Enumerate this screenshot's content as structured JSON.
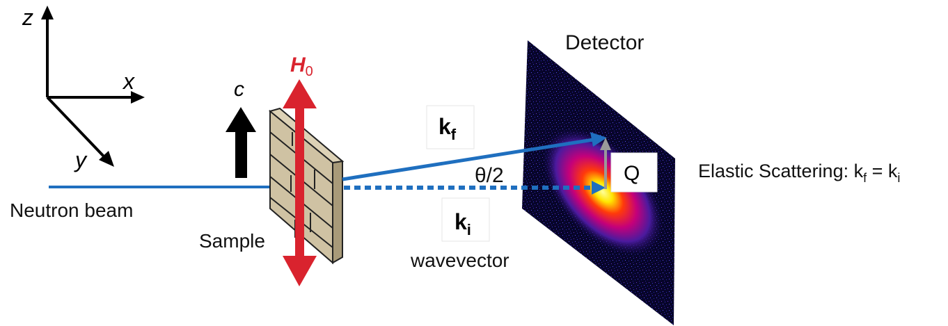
{
  "axes": {
    "z": "z",
    "x": "x",
    "y": "y"
  },
  "beam": {
    "label": "Neutron beam",
    "color": "#1f6fbf"
  },
  "sample": {
    "label": "Sample",
    "c_axis_label": "c",
    "color": "#cbbd9d"
  },
  "field": {
    "label": "H",
    "subscript": "0",
    "color": "#d9232e"
  },
  "wavevectors": {
    "kf_main": "k",
    "kf_sub": "f",
    "ki_main": "k",
    "ki_sub": "i",
    "ki_caption": "wavevector",
    "angle": "θ/2",
    "q": "Q"
  },
  "detector": {
    "label": "Detector"
  },
  "elastic": {
    "prefix": "Elastic Scattering: k",
    "sub1": "f",
    "middle": " = k",
    "sub2": "i"
  }
}
